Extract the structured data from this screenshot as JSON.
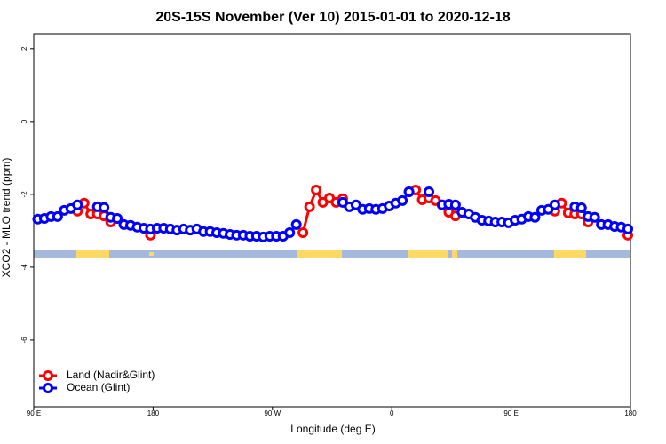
{
  "chart_data": {
    "type": "line",
    "title": "20S-15S November (Ver 10)   2015-01-01 to 2020-12-18",
    "x_label": "Longitude (deg E)",
    "y_label": "XCO2 - MLO trend (ppm)",
    "xlim": [
      90,
      540
    ],
    "ylim": [
      -7.83,
      2.41
    ],
    "xticks": [
      {
        "value": 90,
        "label": "90 E"
      },
      180,
      {
        "value": 270,
        "label": "90 W"
      },
      {
        "value": 360,
        "label": "0"
      },
      {
        "value": 450,
        "label": "90 E"
      },
      {
        "value": 540,
        "label": "180"
      }
    ],
    "yticks": [
      2,
      0,
      -2,
      -4,
      -6
    ],
    "legend": "bottom-left",
    "x": [
      93,
      98,
      103,
      108,
      113,
      118,
      123,
      128,
      133,
      138,
      143,
      148,
      153,
      158,
      163,
      168,
      173,
      178,
      183,
      188,
      193,
      198,
      203,
      208,
      213,
      218,
      223,
      228,
      233,
      238,
      243,
      248,
      253,
      258,
      263,
      268,
      273,
      278,
      283,
      288,
      293,
      298,
      303,
      308,
      313,
      318,
      323,
      328,
      333,
      338,
      343,
      348,
      353,
      358,
      363,
      368,
      373,
      378,
      383,
      388,
      393,
      398,
      403,
      408,
      413,
      418,
      423,
      428,
      433,
      438,
      443,
      448,
      453,
      458,
      463,
      468,
      473,
      478,
      483,
      488,
      493,
      498,
      503,
      508,
      513,
      518,
      523,
      528,
      533,
      538
    ],
    "series": [
      {
        "name": "Land (Nadir&Glint)",
        "color": "#ff0000",
        "values": [
          null,
          null,
          null,
          null,
          null,
          null,
          -2.46,
          -2.24,
          -2.54,
          -2.54,
          -2.59,
          -2.76,
          null,
          null,
          null,
          null,
          null,
          -3.12,
          null,
          null,
          null,
          null,
          null,
          null,
          null,
          null,
          null,
          null,
          null,
          null,
          null,
          null,
          null,
          null,
          null,
          null,
          null,
          null,
          null,
          null,
          -3.05,
          -2.34,
          -1.88,
          -2.22,
          -2.1,
          -2.22,
          -2.12,
          null,
          null,
          null,
          null,
          null,
          null,
          null,
          null,
          null,
          -1.93,
          -1.88,
          -2.15,
          -2.1,
          -2.17,
          -2.29,
          -2.49,
          -2.59,
          null,
          null,
          null,
          null,
          null,
          null,
          null,
          null,
          null,
          null,
          null,
          null,
          null,
          null,
          -2.46,
          -2.24,
          -2.51,
          -2.54,
          -2.54,
          -2.76,
          null,
          null,
          null,
          null,
          null,
          -3.12
        ]
      },
      {
        "name": "Ocean (Glint)",
        "color": "#0000ff",
        "values": [
          -2.68,
          -2.66,
          -2.61,
          -2.61,
          -2.44,
          -2.39,
          -2.29,
          null,
          null,
          -2.34,
          -2.36,
          -2.63,
          -2.66,
          -2.83,
          -2.85,
          -2.9,
          -2.93,
          -2.95,
          -2.93,
          -2.93,
          -2.95,
          -2.98,
          -2.95,
          -2.98,
          -2.95,
          -3.02,
          -3.02,
          -3.05,
          -3.07,
          -3.1,
          -3.12,
          -3.12,
          -3.15,
          -3.15,
          -3.17,
          -3.15,
          -3.15,
          -3.15,
          -3.05,
          -2.83,
          null,
          null,
          null,
          null,
          null,
          null,
          -2.22,
          -2.34,
          -2.29,
          -2.41,
          -2.39,
          -2.41,
          -2.39,
          -2.32,
          -2.24,
          -2.17,
          -1.93,
          null,
          null,
          -1.93,
          null,
          -2.29,
          -2.27,
          -2.29,
          -2.49,
          -2.54,
          -2.63,
          -2.71,
          -2.73,
          -2.76,
          -2.76,
          -2.78,
          -2.71,
          -2.68,
          -2.61,
          -2.63,
          -2.44,
          -2.41,
          -2.29,
          null,
          null,
          -2.34,
          -2.37,
          -2.61,
          -2.63,
          -2.83,
          -2.83,
          -2.88,
          -2.9,
          -2.95
        ]
      }
    ]
  }
}
